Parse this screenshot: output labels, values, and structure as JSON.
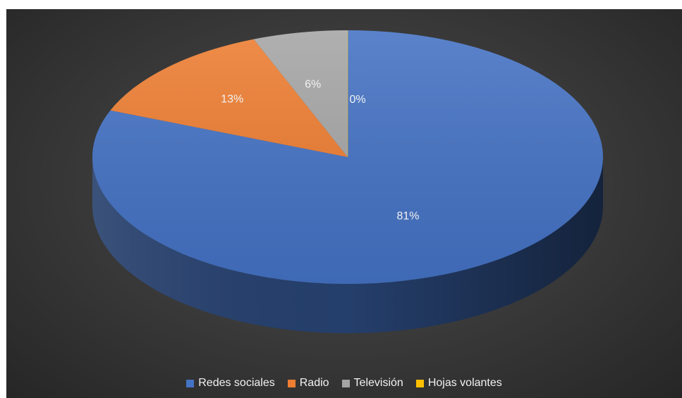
{
  "chart_data": {
    "type": "pie",
    "style": "3d",
    "categories": [
      "Redes sociales",
      "Radio",
      "Televisión",
      "Hojas volantes"
    ],
    "values": [
      81,
      13,
      6,
      0
    ],
    "data_labels": [
      "81%",
      "13%",
      "6%",
      "0%"
    ],
    "colors": [
      "#4472c4",
      "#ed7d31",
      "#a5a5a5",
      "#ffc000"
    ],
    "legend_position": "bottom",
    "background": "#3a3a3a"
  }
}
